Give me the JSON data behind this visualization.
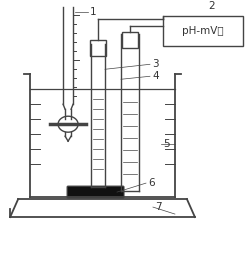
{
  "bg_color": "#ffffff",
  "line_color": "#444444",
  "label_color": "#333333",
  "box_label": "pH-mV计",
  "fig_w": 2.53,
  "fig_h": 2.59,
  "dpi": 100
}
